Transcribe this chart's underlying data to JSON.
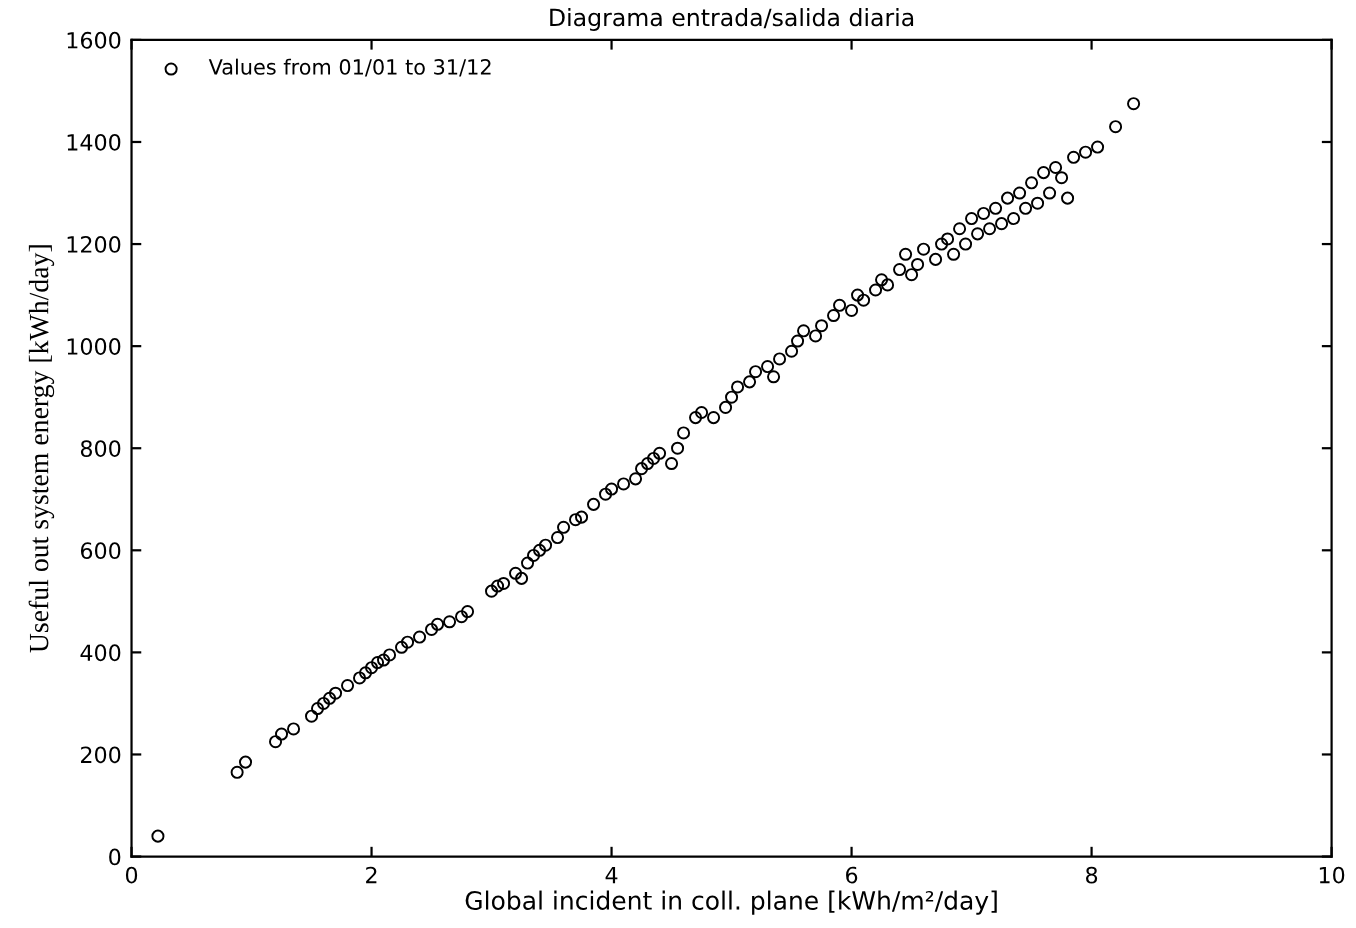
{
  "chart_data": {
    "type": "scatter",
    "title": "Diagrama entrada/salida diaria",
    "xlabel": "Global incident in coll. plane [kWh/m²/day]",
    "ylabel": "Useful out system energy [kWh/day]",
    "xlim": [
      0,
      10
    ],
    "ylim": [
      0,
      1600
    ],
    "xticks": [
      0,
      2,
      4,
      6,
      8,
      10
    ],
    "yticks": [
      0,
      200,
      400,
      600,
      800,
      1000,
      1200,
      1400,
      1600
    ],
    "grid": false,
    "legend": "top left",
    "marker": "circle",
    "series": [
      {
        "name": "Values from 01/01 to 31/12",
        "color": "#000000",
        "x": [
          0.22,
          0.88,
          0.95,
          1.2,
          1.25,
          1.35,
          1.5,
          1.55,
          1.6,
          1.65,
          1.7,
          1.8,
          1.9,
          1.95,
          2.0,
          2.05,
          2.1,
          2.15,
          2.25,
          2.3,
          2.4,
          2.5,
          2.55,
          2.65,
          2.75,
          2.8,
          3.0,
          3.05,
          3.1,
          3.2,
          3.25,
          3.3,
          3.35,
          3.4,
          3.45,
          3.55,
          3.6,
          3.7,
          3.75,
          3.85,
          3.95,
          4.0,
          4.1,
          4.2,
          4.25,
          4.3,
          4.35,
          4.4,
          4.5,
          4.55,
          4.6,
          4.7,
          4.75,
          4.85,
          4.95,
          5.0,
          5.05,
          5.15,
          5.2,
          5.3,
          5.35,
          5.4,
          5.5,
          5.55,
          5.6,
          5.7,
          5.75,
          5.85,
          5.9,
          6.0,
          6.05,
          6.1,
          6.2,
          6.25,
          6.3,
          6.4,
          6.45,
          6.5,
          6.55,
          6.6,
          6.7,
          6.75,
          6.8,
          6.85,
          6.9,
          6.95,
          7.0,
          7.05,
          7.1,
          7.15,
          7.2,
          7.25,
          7.3,
          7.35,
          7.4,
          7.45,
          7.5,
          7.55,
          7.6,
          7.65,
          7.7,
          7.75,
          7.8,
          7.85,
          7.95,
          8.05,
          8.2,
          8.35
        ],
        "values": [
          40,
          165,
          185,
          225,
          240,
          250,
          275,
          290,
          300,
          310,
          320,
          335,
          350,
          360,
          370,
          380,
          385,
          395,
          410,
          420,
          430,
          445,
          455,
          460,
          470,
          480,
          520,
          530,
          535,
          555,
          545,
          575,
          590,
          600,
          610,
          625,
          645,
          660,
          665,
          690,
          710,
          720,
          730,
          740,
          760,
          770,
          780,
          790,
          770,
          800,
          830,
          860,
          870,
          860,
          880,
          900,
          920,
          930,
          950,
          960,
          940,
          975,
          990,
          1010,
          1030,
          1020,
          1040,
          1060,
          1080,
          1070,
          1100,
          1090,
          1110,
          1130,
          1120,
          1150,
          1180,
          1140,
          1160,
          1190,
          1170,
          1200,
          1210,
          1180,
          1230,
          1200,
          1250,
          1220,
          1260,
          1230,
          1270,
          1240,
          1290,
          1250,
          1300,
          1270,
          1320,
          1280,
          1340,
          1300,
          1350,
          1330,
          1290,
          1370,
          1380,
          1390,
          1430,
          1475
        ]
      }
    ]
  }
}
